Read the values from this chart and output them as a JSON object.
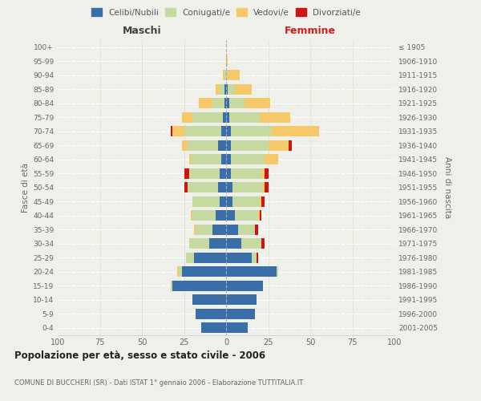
{
  "age_groups": [
    "0-4",
    "5-9",
    "10-14",
    "15-19",
    "20-24",
    "25-29",
    "30-34",
    "35-39",
    "40-44",
    "45-49",
    "50-54",
    "55-59",
    "60-64",
    "65-69",
    "70-74",
    "75-79",
    "80-84",
    "85-89",
    "90-94",
    "95-99",
    "100+"
  ],
  "birth_years": [
    "2001-2005",
    "1996-2000",
    "1991-1995",
    "1986-1990",
    "1981-1985",
    "1976-1980",
    "1971-1975",
    "1966-1970",
    "1961-1965",
    "1956-1960",
    "1951-1955",
    "1946-1950",
    "1941-1945",
    "1936-1940",
    "1931-1935",
    "1926-1930",
    "1921-1925",
    "1916-1920",
    "1911-1915",
    "1906-1910",
    "≤ 1905"
  ],
  "maschi": {
    "celibi": [
      15,
      18,
      20,
      32,
      26,
      19,
      10,
      8,
      6,
      4,
      5,
      4,
      3,
      5,
      3,
      2,
      1,
      1,
      0,
      0,
      0
    ],
    "coniugati": [
      0,
      0,
      0,
      1,
      2,
      5,
      12,
      10,
      14,
      16,
      18,
      18,
      18,
      18,
      22,
      18,
      7,
      3,
      1,
      0,
      0
    ],
    "vedovi": [
      0,
      0,
      0,
      0,
      1,
      0,
      0,
      1,
      1,
      0,
      0,
      0,
      1,
      3,
      7,
      6,
      8,
      2,
      1,
      0,
      0
    ],
    "divorziati": [
      0,
      0,
      0,
      0,
      0,
      0,
      0,
      0,
      0,
      0,
      2,
      3,
      0,
      0,
      1,
      0,
      0,
      0,
      0,
      0,
      0
    ]
  },
  "femmine": {
    "nubili": [
      13,
      17,
      18,
      22,
      30,
      15,
      9,
      7,
      5,
      4,
      4,
      3,
      3,
      3,
      3,
      2,
      2,
      1,
      0,
      0,
      0
    ],
    "coniugate": [
      0,
      0,
      0,
      0,
      1,
      3,
      12,
      10,
      14,
      16,
      18,
      18,
      20,
      22,
      24,
      18,
      9,
      4,
      1,
      0,
      0
    ],
    "vedove": [
      0,
      0,
      0,
      0,
      0,
      0,
      0,
      0,
      1,
      1,
      1,
      2,
      8,
      12,
      28,
      18,
      15,
      10,
      7,
      1,
      0
    ],
    "divorziate": [
      0,
      0,
      0,
      0,
      0,
      1,
      2,
      2,
      1,
      2,
      2,
      2,
      0,
      2,
      0,
      0,
      0,
      0,
      0,
      0,
      0
    ]
  },
  "colors": {
    "celibi": "#3a6ea8",
    "coniugati": "#c5d9a0",
    "vedovi": "#f5c96a",
    "divorziati": "#cc1414"
  },
  "title": "Popolazione per età, sesso e stato civile - 2006",
  "subtitle": "COMUNE DI BUCCHERI (SR) - Dati ISTAT 1° gennaio 2006 - Elaborazione TUTTITALIA.IT",
  "xlabel_left": "Maschi",
  "xlabel_right": "Femmine",
  "ylabel_left": "Fasce di età",
  "ylabel_right": "Anni di nascita",
  "xlim": 100,
  "bg_color": "#f0f0eb",
  "bar_height": 0.75
}
